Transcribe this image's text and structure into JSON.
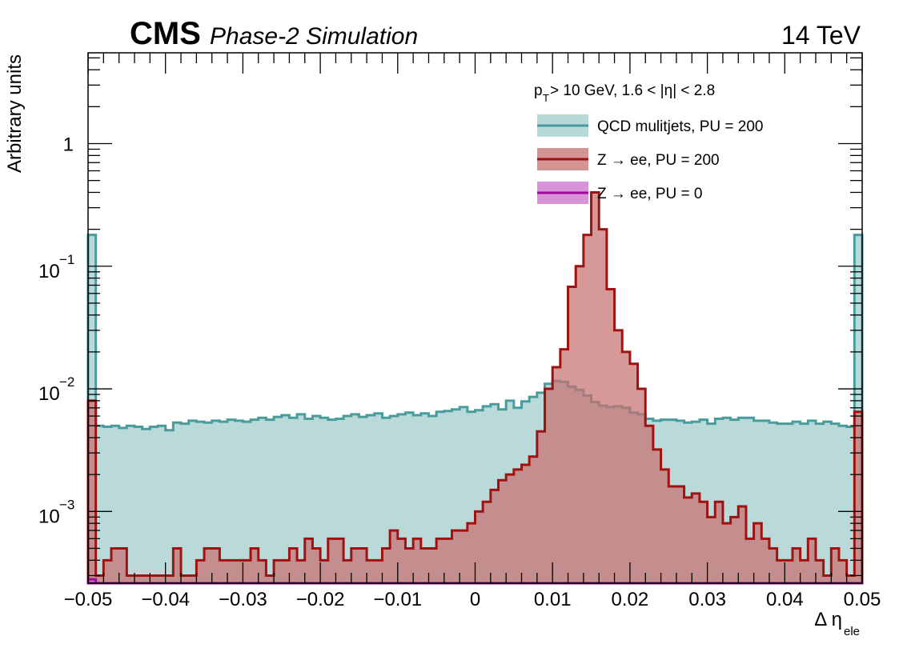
{
  "header": {
    "experiment": "CMS",
    "subtitle": "Phase-2 Simulation",
    "energy": "14 TeV"
  },
  "chart_data": {
    "type": "area",
    "ylabel": "Arbitrary units",
    "xlabel_main": "Δ η",
    "xlabel_sub": "ele",
    "xlim": [
      -0.05,
      0.05
    ],
    "ylim": [
      0.00026,
      5.5
    ],
    "y_scale": "log",
    "x_ticks": [
      -0.05,
      -0.04,
      -0.03,
      -0.02,
      -0.01,
      0,
      0.01,
      0.02,
      0.03,
      0.04,
      0.05
    ],
    "x_tick_labels": [
      "−0.05",
      "−0.04",
      "−0.03",
      "−0.02",
      "−0.01",
      "0",
      "0.01",
      "0.02",
      "0.03",
      "0.04",
      "0.05"
    ],
    "y_tick_labels": [
      {
        "value": 1,
        "base": "1",
        "exp": ""
      },
      {
        "value": 0.1,
        "base": "10",
        "exp": "−1"
      },
      {
        "value": 0.01,
        "base": "10",
        "exp": "−2"
      },
      {
        "value": 0.001,
        "base": "10",
        "exp": "−3"
      }
    ],
    "cut_label": {
      "pre": "p",
      "sub": "T",
      "post": " > 10 GeV, 1.6 < |η| < 2.8"
    },
    "legend_position": "top-right",
    "bins": 100,
    "series": [
      {
        "name": "QCD mulitjets, PU = 200",
        "line": "#4a9c9c",
        "fill": "#a0cccc",
        "values": [
          0.18,
          0.005,
          0.0049,
          0.005,
          0.0048,
          0.005,
          0.0049,
          0.0047,
          0.0049,
          0.005,
          0.0046,
          0.0053,
          0.0052,
          0.0055,
          0.0054,
          0.0053,
          0.0055,
          0.0054,
          0.0056,
          0.0055,
          0.0054,
          0.0056,
          0.0058,
          0.0056,
          0.0059,
          0.0061,
          0.0058,
          0.0062,
          0.0057,
          0.006,
          0.0058,
          0.0056,
          0.0057,
          0.006,
          0.0062,
          0.0059,
          0.0061,
          0.0063,
          0.0058,
          0.006,
          0.0062,
          0.0064,
          0.0061,
          0.0063,
          0.006,
          0.0065,
          0.0066,
          0.0068,
          0.0071,
          0.0065,
          0.0067,
          0.0072,
          0.0075,
          0.0068,
          0.008,
          0.007,
          0.0079,
          0.0086,
          0.0093,
          0.011,
          0.0116,
          0.0114,
          0.0104,
          0.0098,
          0.0088,
          0.0078,
          0.0073,
          0.0071,
          0.0072,
          0.007,
          0.0064,
          0.0062,
          0.0057,
          0.0055,
          0.0056,
          0.0056,
          0.0055,
          0.0053,
          0.0054,
          0.0056,
          0.0052,
          0.0057,
          0.0058,
          0.0056,
          0.0058,
          0.0058,
          0.0055,
          0.0055,
          0.0053,
          0.0052,
          0.0052,
          0.0054,
          0.0052,
          0.0055,
          0.0052,
          0.0054,
          0.0052,
          0.005,
          0.0049,
          0.18
        ]
      },
      {
        "name": "Z → ee, PU = 200",
        "line": "#a01212",
        "fill": "#c77070",
        "values": [
          0.008,
          0.0003,
          0.0004,
          0.0005,
          0.0005,
          0.0003,
          0.0003,
          0.0003,
          0.0003,
          0.0003,
          0.0003,
          0.0005,
          0.0003,
          0.0003,
          0.0004,
          0.0005,
          0.0005,
          0.0004,
          0.0004,
          0.0004,
          0.0004,
          0.0005,
          0.0004,
          0.0003,
          0.0004,
          0.0004,
          0.0005,
          0.0004,
          0.0006,
          0.0005,
          0.0004,
          0.0006,
          0.0006,
          0.0004,
          0.0005,
          0.0005,
          0.0004,
          0.0004,
          0.0005,
          0.0007,
          0.0006,
          0.0005,
          0.0006,
          0.0005,
          0.0005,
          0.0006,
          0.0006,
          0.0007,
          0.0007,
          0.0008,
          0.001,
          0.0012,
          0.0015,
          0.0018,
          0.002,
          0.0022,
          0.0024,
          0.0028,
          0.0045,
          0.01,
          0.015,
          0.021,
          0.068,
          0.1,
          0.18,
          0.4,
          0.2,
          0.065,
          0.03,
          0.02,
          0.016,
          0.01,
          0.005,
          0.0032,
          0.0022,
          0.0016,
          0.0016,
          0.0013,
          0.0014,
          0.0012,
          0.0009,
          0.0012,
          0.0008,
          0.0009,
          0.0011,
          0.0006,
          0.0008,
          0.0006,
          0.0005,
          0.0004,
          0.0004,
          0.0005,
          0.0004,
          0.0006,
          0.0004,
          0.0003,
          0.0005,
          0.0004,
          0.0003,
          0.0065
        ]
      },
      {
        "name": "Z → ee, PU = 0",
        "line": "#9c0a9c",
        "fill": "#cc6fcc",
        "values": [
          0.00028,
          0,
          0,
          0,
          0,
          0,
          0,
          0,
          0,
          0,
          0,
          0,
          0,
          0,
          0,
          0,
          0,
          0,
          0,
          0,
          0,
          0,
          0,
          0,
          0,
          0,
          0,
          0,
          0,
          0,
          0,
          0,
          0,
          0,
          0,
          0,
          0,
          0,
          0,
          0,
          0,
          0,
          0,
          0,
          0,
          0,
          0,
          0,
          0,
          0,
          0,
          0,
          0,
          0,
          0,
          0,
          0,
          0,
          0,
          0,
          0,
          0,
          0,
          0,
          0,
          0,
          0,
          0,
          0,
          0,
          0,
          0,
          0,
          0,
          0,
          0,
          0,
          0,
          0,
          0,
          0,
          0,
          0,
          0,
          0,
          0,
          0,
          0,
          0,
          0,
          0,
          0,
          0,
          0,
          0,
          0,
          0,
          0,
          0,
          0
        ]
      }
    ]
  }
}
